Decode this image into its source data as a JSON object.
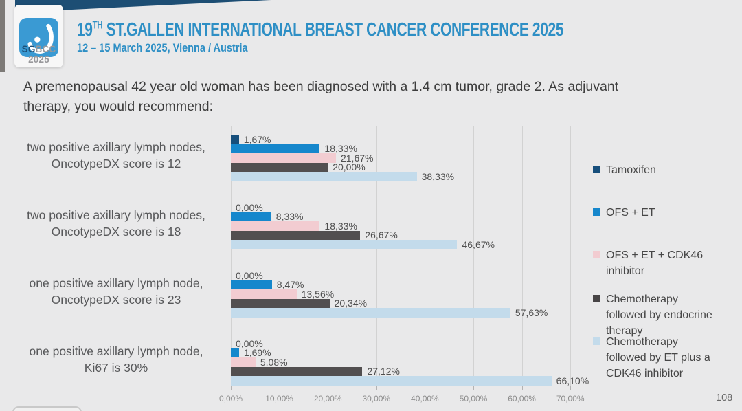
{
  "header": {
    "logo_bold": "SG",
    "logo_rest": "BCC 2025",
    "title_num": "19",
    "title_sup": "TH",
    "title_rest": " ST.GALLEN INTERNATIONAL BREAST CANCER CONFERENCE 2025",
    "subtitle": "12 – 15 March 2025, Vienna / Austria"
  },
  "question": "A premenopausal 42 year old woman has been diagnosed with a 1.4 cm tumor, grade 2. As adjuvant therapy, you would recommend:",
  "page_number": "108",
  "colors": {
    "accent_blue": "#2e8fc5",
    "header_wedge_navy": "#1d4e74",
    "logo_blue": "#3a9ad3",
    "background": "#e9e9ea"
  },
  "chart_data": {
    "type": "bar",
    "orientation": "horizontal",
    "title": "",
    "xlabel": "",
    "ylabel": "",
    "xlim": [
      0,
      70
    ],
    "grid": true,
    "legend_position": "right",
    "axis": {
      "min": 0,
      "max": 70,
      "step": 10,
      "ticks": [
        "0,00%",
        "10,00%",
        "20,00%",
        "30,00%",
        "40,00%",
        "50,00%",
        "60,00%",
        "70,00%"
      ]
    },
    "categories": [
      {
        "lines": [
          "two positive axillary lymph nodes,",
          "OncotypeDX score is 12"
        ]
      },
      {
        "lines": [
          "two positive axillary lymph nodes,",
          "OncotypeDX score is 18"
        ]
      },
      {
        "lines": [
          "one positive axillary lymph node,",
          "OncotypeDX score is 23"
        ]
      },
      {
        "lines": [
          "one positive axillary lymph node,",
          "Ki67 is 30%"
        ]
      }
    ],
    "series": [
      {
        "name": "Tamoxifen",
        "color": "#174f7c",
        "values": [
          1.67,
          0.0,
          0.0,
          0.0
        ],
        "labels": [
          "1,67%",
          "0,00%",
          "0,00%",
          "0,00%"
        ]
      },
      {
        "name": "OFS + ET",
        "color": "#1687cc",
        "values": [
          18.33,
          8.33,
          8.47,
          1.69
        ],
        "labels": [
          "18,33%",
          "8,33%",
          "8,47%",
          "1,69%"
        ]
      },
      {
        "name": "OFS + ET + CDK46 inhibitor",
        "color": "#f2ccd1",
        "values": [
          21.67,
          18.33,
          13.56,
          5.08
        ],
        "labels": [
          "21,67%",
          "18,33%",
          "13,56%",
          "5,08%"
        ]
      },
      {
        "name": "Chemotherapy followed by endocrine therapy",
        "color": "#524f50",
        "values": [
          20.0,
          26.67,
          20.34,
          27.12
        ],
        "labels": [
          "20,00%",
          "26,67%",
          "20,34%",
          "27,12%"
        ]
      },
      {
        "name": "Chemotherapy followed by ET plus a CDK46 inhibitor",
        "color": "#c3dbeb",
        "values": [
          38.33,
          46.67,
          57.63,
          66.1
        ],
        "labels": [
          "38,33%",
          "46,67%",
          "57,63%",
          "66,10%"
        ]
      }
    ],
    "legend": {
      "items": [
        {
          "lines": [
            "Tamoxifen"
          ],
          "color": "#174f7c"
        },
        {
          "lines": [
            "OFS + ET"
          ],
          "color": "#1687cc"
        },
        {
          "lines": [
            "OFS + ET + CDK46",
            "inhibitor"
          ],
          "color": "#f2ccd1"
        },
        {
          "lines": [
            "Chemotherapy",
            "followed by endocrine",
            "therapy"
          ],
          "color": "#474445"
        },
        {
          "lines": [
            "Chemotherapy",
            "followed by ET plus a",
            "CDK46 inhibitor"
          ],
          "color": "#c3dbeb"
        }
      ]
    }
  }
}
